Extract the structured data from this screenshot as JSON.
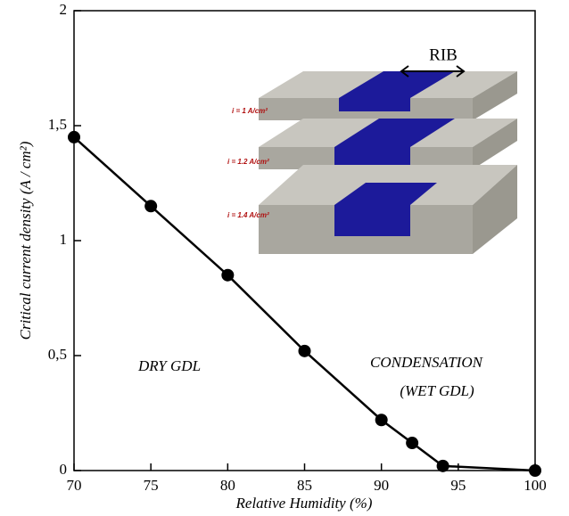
{
  "chart_data": {
    "type": "line",
    "x_label": "Relative Humidity (%)",
    "y_label": "Critical current density (A / cm²)",
    "x": [
      70,
      75,
      80,
      85,
      90,
      92,
      94,
      100
    ],
    "series": [
      {
        "name": "Critical current density",
        "color": "#000000",
        "values": [
          1.45,
          1.15,
          0.85,
          0.52,
          0.22,
          0.12,
          0.02,
          0.0
        ]
      }
    ],
    "xlim": [
      70,
      100
    ],
    "xticks": [
      70,
      75,
      80,
      85,
      90,
      95,
      100
    ],
    "ylim": [
      0,
      2
    ],
    "yticks": [
      0,
      {
        "value": 0.5,
        "label": "0,5"
      },
      1,
      {
        "value": 1.5,
        "label": "1,5"
      },
      2
    ],
    "annotations": [
      "DRY GDL",
      "CONDENSATION",
      "(WET GDL)"
    ],
    "inset": {
      "label": "RIB",
      "currents": [
        "i = 1 A/cm²",
        "i = 1.2 A/cm²",
        "i = 1.4 A/cm²"
      ]
    }
  }
}
